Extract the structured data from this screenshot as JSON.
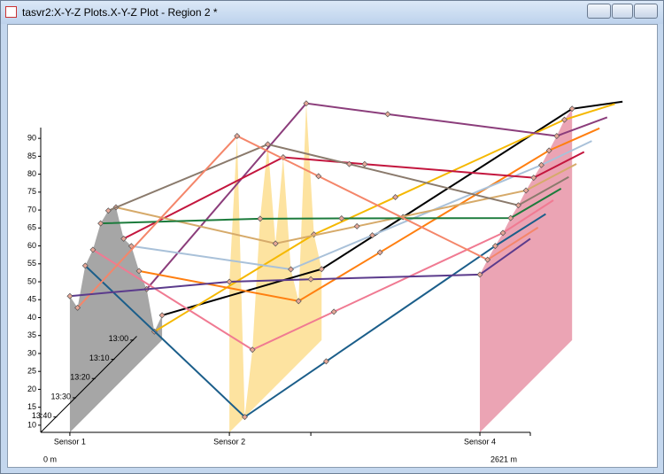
{
  "window_title": "tasvr2:X-Y-Z Plots.X-Y-Z Plot - Region 2 *",
  "chart_data": {
    "type": "line3d",
    "categories": [
      "Sensor 1",
      "Sensor 2",
      null,
      "Sensor 4",
      null
    ],
    "x": [
      156,
      1010,
      1446,
      2351,
      2621
    ],
    "xlim": [
      0,
      2621
    ],
    "xticks": [
      {
        "value": 0,
        "label": "0 m"
      },
      {
        "value": 2621,
        "label": "2621 m"
      }
    ],
    "ylim": [
      8,
      93
    ],
    "yticks": [
      10,
      15,
      20,
      25,
      30,
      35,
      40,
      45,
      50,
      55,
      60,
      65,
      70,
      75,
      80,
      85,
      90
    ],
    "zlim": [
      828,
      778
    ],
    "zticks": [
      {
        "value": 780,
        "label": "13:00"
      },
      {
        "value": 790,
        "label": "13:10"
      },
      {
        "value": 800,
        "label": "13:20"
      },
      {
        "value": 810,
        "label": "13:30"
      },
      {
        "value": 820,
        "label": "13:40"
      }
    ],
    "fills": [
      {
        "sensor": 0,
        "color": "#a6a6a6"
      },
      {
        "sensor": 1,
        "color": "#fde3a0"
      },
      {
        "sensor": 3,
        "color": "#eba4b4"
      }
    ],
    "series": [
      {
        "color": "#5b3b8c",
        "z": 828,
        "values": [
          46,
          50,
          50.7,
          52,
          62
        ]
      },
      {
        "color": "#f4866a",
        "z": 824,
        "values": [
          40.6,
          88.5,
          77.3,
          54,
          63
        ]
      },
      {
        "color": "#1b5e8a",
        "z": 820,
        "values": [
          50.2,
          8,
          23.5,
          55.7,
          64.6
        ]
      },
      {
        "color": "#f07a92",
        "z": 816,
        "values": [
          52.5,
          24.6,
          35.2,
          57.2,
          66.3
        ]
      },
      {
        "color": "#1c7b3c",
        "z": 812,
        "values": [
          57.7,
          59,
          59.1,
          59.2,
          67.4
        ]
      },
      {
        "color": "#8a7a6c",
        "z": 808,
        "values": [
          59.1,
          77.6,
          72.1,
          60.6,
          68.5
        ]
      },
      {
        "color": "#d6aa6a",
        "z": 804,
        "values": [
          57.9,
          47.8,
          52.6,
          62.6,
          70
        ]
      },
      {
        "color": "#c3163e",
        "z": 800,
        "values": [
          47,
          69.7,
          67.8,
          64,
          71.2
        ]
      },
      {
        "color": "#a9c1d9",
        "z": 796,
        "values": [
          42.8,
          36.3,
          45.8,
          65.4,
          72.1
        ]
      },
      {
        "color": "#ff7f10",
        "z": 792,
        "values": [
          33.7,
          25.3,
          38.9,
          67.3,
          73.5
        ]
      },
      {
        "color": "#8b3d7b",
        "z": 788,
        "values": [
          26.5,
          78.3,
          75.3,
          69.2,
          74.4
        ]
      },
      {
        "color": "#f5b800",
        "z": 784,
        "values": [
          12.5,
          39.6,
          50,
          71.6,
          76
        ]
      },
      {
        "color": "#000000",
        "z": 780,
        "values": [
          14.9,
          27.8,
          42.3,
          72.5,
          74.5
        ]
      }
    ]
  }
}
